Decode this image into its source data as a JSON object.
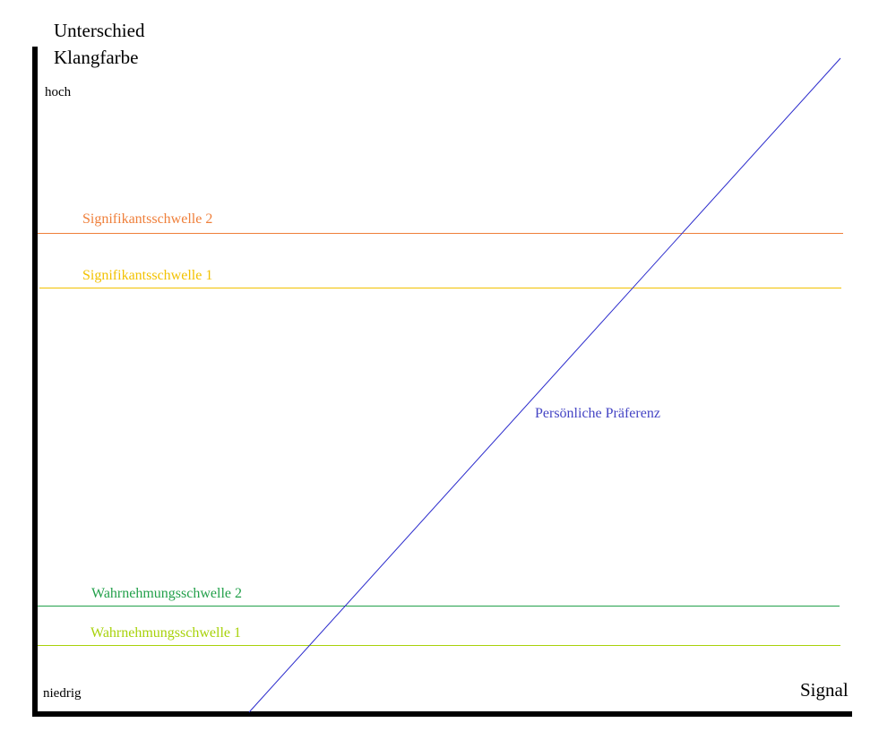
{
  "axes": {
    "y_title": [
      "Unterschied",
      "Klangfarbe"
    ],
    "y_high": "hoch",
    "y_low": "niedrig",
    "x_title": "Signal"
  },
  "thresholds": [
    "Signifikantsschwelle 2",
    "Signifikantsschwelle 1",
    "Wahrnehmungsschwelle 2",
    "Wahrnehmungsschwelle 1"
  ],
  "preference": "Persönliche Präferenz"
}
